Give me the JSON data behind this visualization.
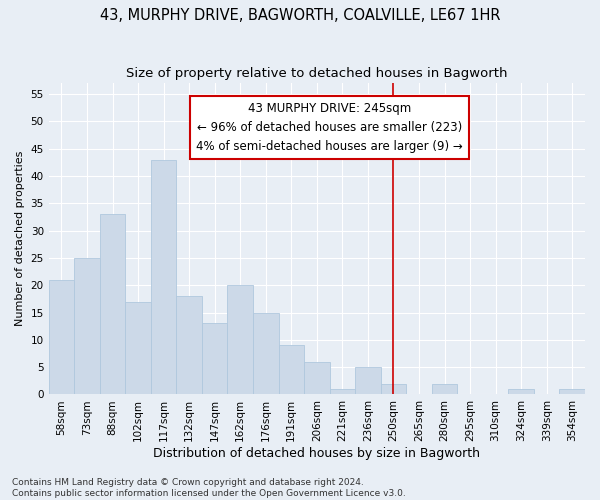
{
  "title": "43, MURPHY DRIVE, BAGWORTH, COALVILLE, LE67 1HR",
  "subtitle": "Size of property relative to detached houses in Bagworth",
  "xlabel": "Distribution of detached houses by size in Bagworth",
  "ylabel": "Number of detached properties",
  "categories": [
    "58sqm",
    "73sqm",
    "88sqm",
    "102sqm",
    "117sqm",
    "132sqm",
    "147sqm",
    "162sqm",
    "176sqm",
    "191sqm",
    "206sqm",
    "221sqm",
    "236sqm",
    "250sqm",
    "265sqm",
    "280sqm",
    "295sqm",
    "310sqm",
    "324sqm",
    "339sqm",
    "354sqm"
  ],
  "values": [
    21,
    25,
    33,
    17,
    43,
    18,
    13,
    20,
    15,
    9,
    6,
    1,
    5,
    2,
    0,
    2,
    0,
    0,
    1,
    0,
    1
  ],
  "bar_color": "#ccd9e8",
  "bar_edgecolor": "#b0c8de",
  "bg_color": "#e8eef5",
  "grid_color": "#ffffff",
  "vline_x_index": 13,
  "vline_color": "#cc0000",
  "annotation_line1": "43 MURPHY DRIVE: 245sqm",
  "annotation_line2": "← 96% of detached houses are smaller (223)",
  "annotation_line3": "4% of semi-detached houses are larger (9) →",
  "annotation_box_edgecolor": "#cc0000",
  "annotation_box_facecolor": "#ffffff",
  "ylim": [
    0,
    57
  ],
  "yticks": [
    0,
    5,
    10,
    15,
    20,
    25,
    30,
    35,
    40,
    45,
    50,
    55
  ],
  "footer": "Contains HM Land Registry data © Crown copyright and database right 2024.\nContains public sector information licensed under the Open Government Licence v3.0.",
  "title_fontsize": 10.5,
  "subtitle_fontsize": 9.5,
  "xlabel_fontsize": 9,
  "ylabel_fontsize": 8,
  "tick_fontsize": 7.5,
  "annotation_fontsize": 8.5,
  "footer_fontsize": 6.5
}
